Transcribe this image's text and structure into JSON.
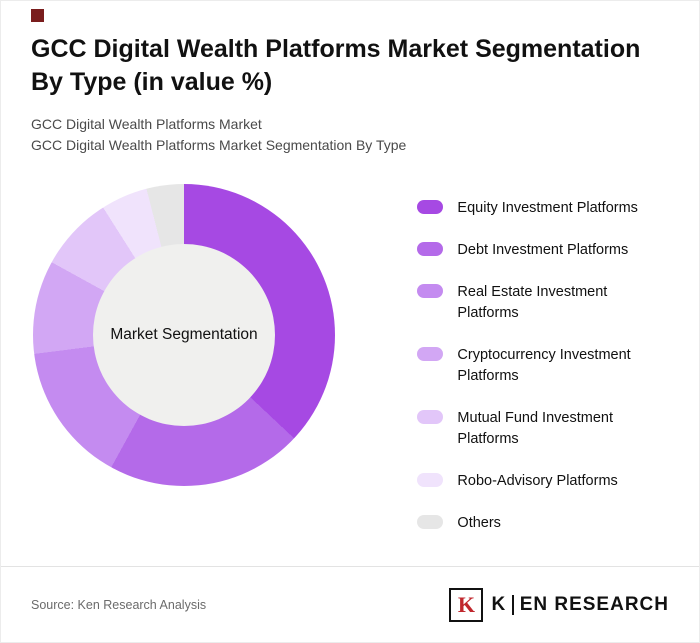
{
  "brand": {
    "mark_color": "#7a1d1d"
  },
  "header": {
    "title": "GCC Digital Wealth Platforms Market Segmentation By Type (in value %)",
    "subtitle_line1": "GCC Digital Wealth Platforms Market",
    "subtitle_line2": "GCC Digital Wealth Platforms Market Segmentation By Type"
  },
  "chart_data": {
    "type": "pie",
    "donut": true,
    "start_angle_deg": 0,
    "center_label": "Market Segmentation",
    "legend_position": "right",
    "hole_color": "#f0f0ee",
    "segments": [
      {
        "label": "Equity Investment Platforms",
        "value": 37,
        "color": "#a649e3"
      },
      {
        "label": "Debt Investment Platforms",
        "value": 21,
        "color": "#b46ae9"
      },
      {
        "label": "Real Estate Investment Platforms",
        "value": 15,
        "color": "#c48bf0"
      },
      {
        "label": "Cryptocurrency Investment Platforms",
        "value": 10,
        "color": "#d2a7f4"
      },
      {
        "label": "Mutual Fund Investment Platforms",
        "value": 8,
        "color": "#e2c6f9"
      },
      {
        "label": "Robo-Advisory Platforms",
        "value": 5,
        "color": "#f0e3fc"
      },
      {
        "label": "Others",
        "value": 4,
        "color": "#e6e6e6"
      }
    ]
  },
  "footer": {
    "source": "Source: Ken Research Analysis",
    "logo_letter": "K",
    "logo_text_first": "K",
    "logo_text_rest": "EN RESEARCH"
  }
}
